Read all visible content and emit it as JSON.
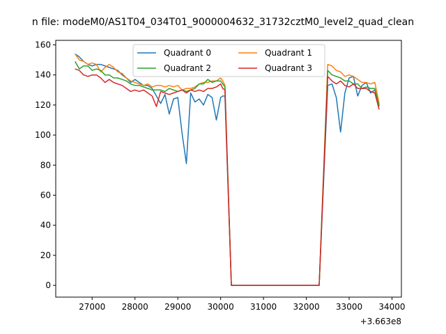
{
  "chart_data": {
    "type": "line",
    "title": "n file: modeM0/AS1T04_034T01_9000004632_31732cztM0_level2_quad_clean",
    "xlabel": "",
    "ylabel": "",
    "x_offset_text": "+3.663e8",
    "x_range": [
      26150,
      34220
    ],
    "y_range": [
      -7.8,
      163
    ],
    "x_ticks": [
      27000,
      28000,
      29000,
      30000,
      31000,
      32000,
      33000,
      34000
    ],
    "x_tick_labels": [
      "27000",
      "28000",
      "29000",
      "30000",
      "31000",
      "32000",
      "33000",
      "34000"
    ],
    "y_ticks": [
      0,
      20,
      40,
      60,
      80,
      100,
      120,
      140,
      160
    ],
    "y_tick_labels": [
      "0",
      "20",
      "40",
      "60",
      "80",
      "100",
      "120",
      "140",
      "160"
    ],
    "grid": false,
    "legend": {
      "placement": "upper center",
      "columns": 2
    },
    "x": [
      26600,
      26700,
      26800,
      26900,
      27000,
      27100,
      27200,
      27300,
      27400,
      27500,
      27600,
      27700,
      27800,
      27900,
      28000,
      28100,
      28200,
      28300,
      28400,
      28500,
      28600,
      28700,
      28800,
      28900,
      29000,
      29100,
      29200,
      29300,
      29400,
      29500,
      29600,
      29700,
      29800,
      29900,
      30000,
      30050,
      30100,
      30250,
      30500,
      31000,
      31500,
      32000,
      32300,
      32500,
      32600,
      32700,
      32800,
      32900,
      33000,
      33100,
      33200,
      33300,
      33400,
      33500,
      33600,
      33700
    ],
    "series": [
      {
        "name": "Quadrant 0",
        "color": "#1f77b4",
        "values": [
          154,
          152,
          149,
          147,
          146,
          147,
          147,
          146,
          145,
          144,
          143,
          140,
          138,
          135,
          137,
          135,
          133,
          133,
          131,
          126,
          121,
          127,
          114,
          124,
          125,
          101,
          81,
          128,
          122,
          124,
          120,
          127,
          125,
          110,
          125,
          126,
          126,
          0,
          0,
          0,
          0,
          0,
          0,
          133,
          134,
          125,
          102,
          128,
          138,
          139,
          126,
          133,
          135,
          128,
          130,
          120
        ]
      },
      {
        "name": "Quadrant 1",
        "color": "#ff7f0e",
        "values": [
          154,
          150,
          149,
          147,
          148,
          147,
          142,
          145,
          147,
          145,
          142,
          141,
          138,
          136,
          135,
          134,
          133,
          134,
          132,
          133,
          133,
          132,
          133,
          132,
          133,
          130,
          131,
          131,
          132,
          134,
          135,
          135,
          136,
          136,
          138,
          136,
          133,
          0,
          0,
          0,
          0,
          0,
          0,
          147,
          146,
          143,
          142,
          139,
          140,
          139,
          137,
          135,
          135,
          134,
          135,
          121
        ]
      },
      {
        "name": "Quadrant 2",
        "color": "#2ca02c",
        "values": [
          149,
          144,
          146,
          146,
          143,
          144,
          143,
          140,
          140,
          138,
          138,
          137,
          136,
          134,
          133,
          133,
          132,
          131,
          130,
          130,
          130,
          129,
          131,
          130,
          129,
          130,
          129,
          130,
          131,
          134,
          134,
          137,
          135,
          136,
          136,
          134,
          132,
          0,
          0,
          0,
          0,
          0,
          0,
          143,
          140,
          139,
          138,
          136,
          136,
          134,
          134,
          131,
          132,
          131,
          131,
          119
        ]
      },
      {
        "name": "Quadrant 3",
        "color": "#d62728",
        "values": [
          144,
          143,
          140,
          139,
          140,
          140,
          138,
          135,
          137,
          135,
          134,
          133,
          131,
          129,
          130,
          129,
          130,
          128,
          126,
          119,
          129,
          128,
          127,
          128,
          129,
          130,
          128,
          130,
          129,
          130,
          129,
          131,
          131,
          132,
          134,
          131,
          130,
          0,
          0,
          0,
          0,
          0,
          0,
          139,
          136,
          134,
          136,
          133,
          132,
          134,
          131,
          131,
          131,
          129,
          128,
          117
        ]
      }
    ]
  }
}
